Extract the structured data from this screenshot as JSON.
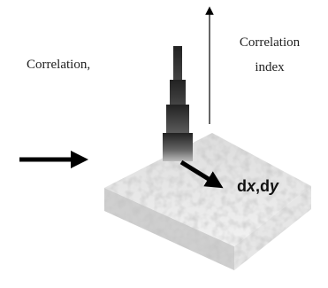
{
  "labels": {
    "left": "Correlation,",
    "index_line1": "Correlation",
    "index_line2": "index",
    "displacement_parts": [
      "d",
      "x",
      ",d",
      "y"
    ]
  }
}
